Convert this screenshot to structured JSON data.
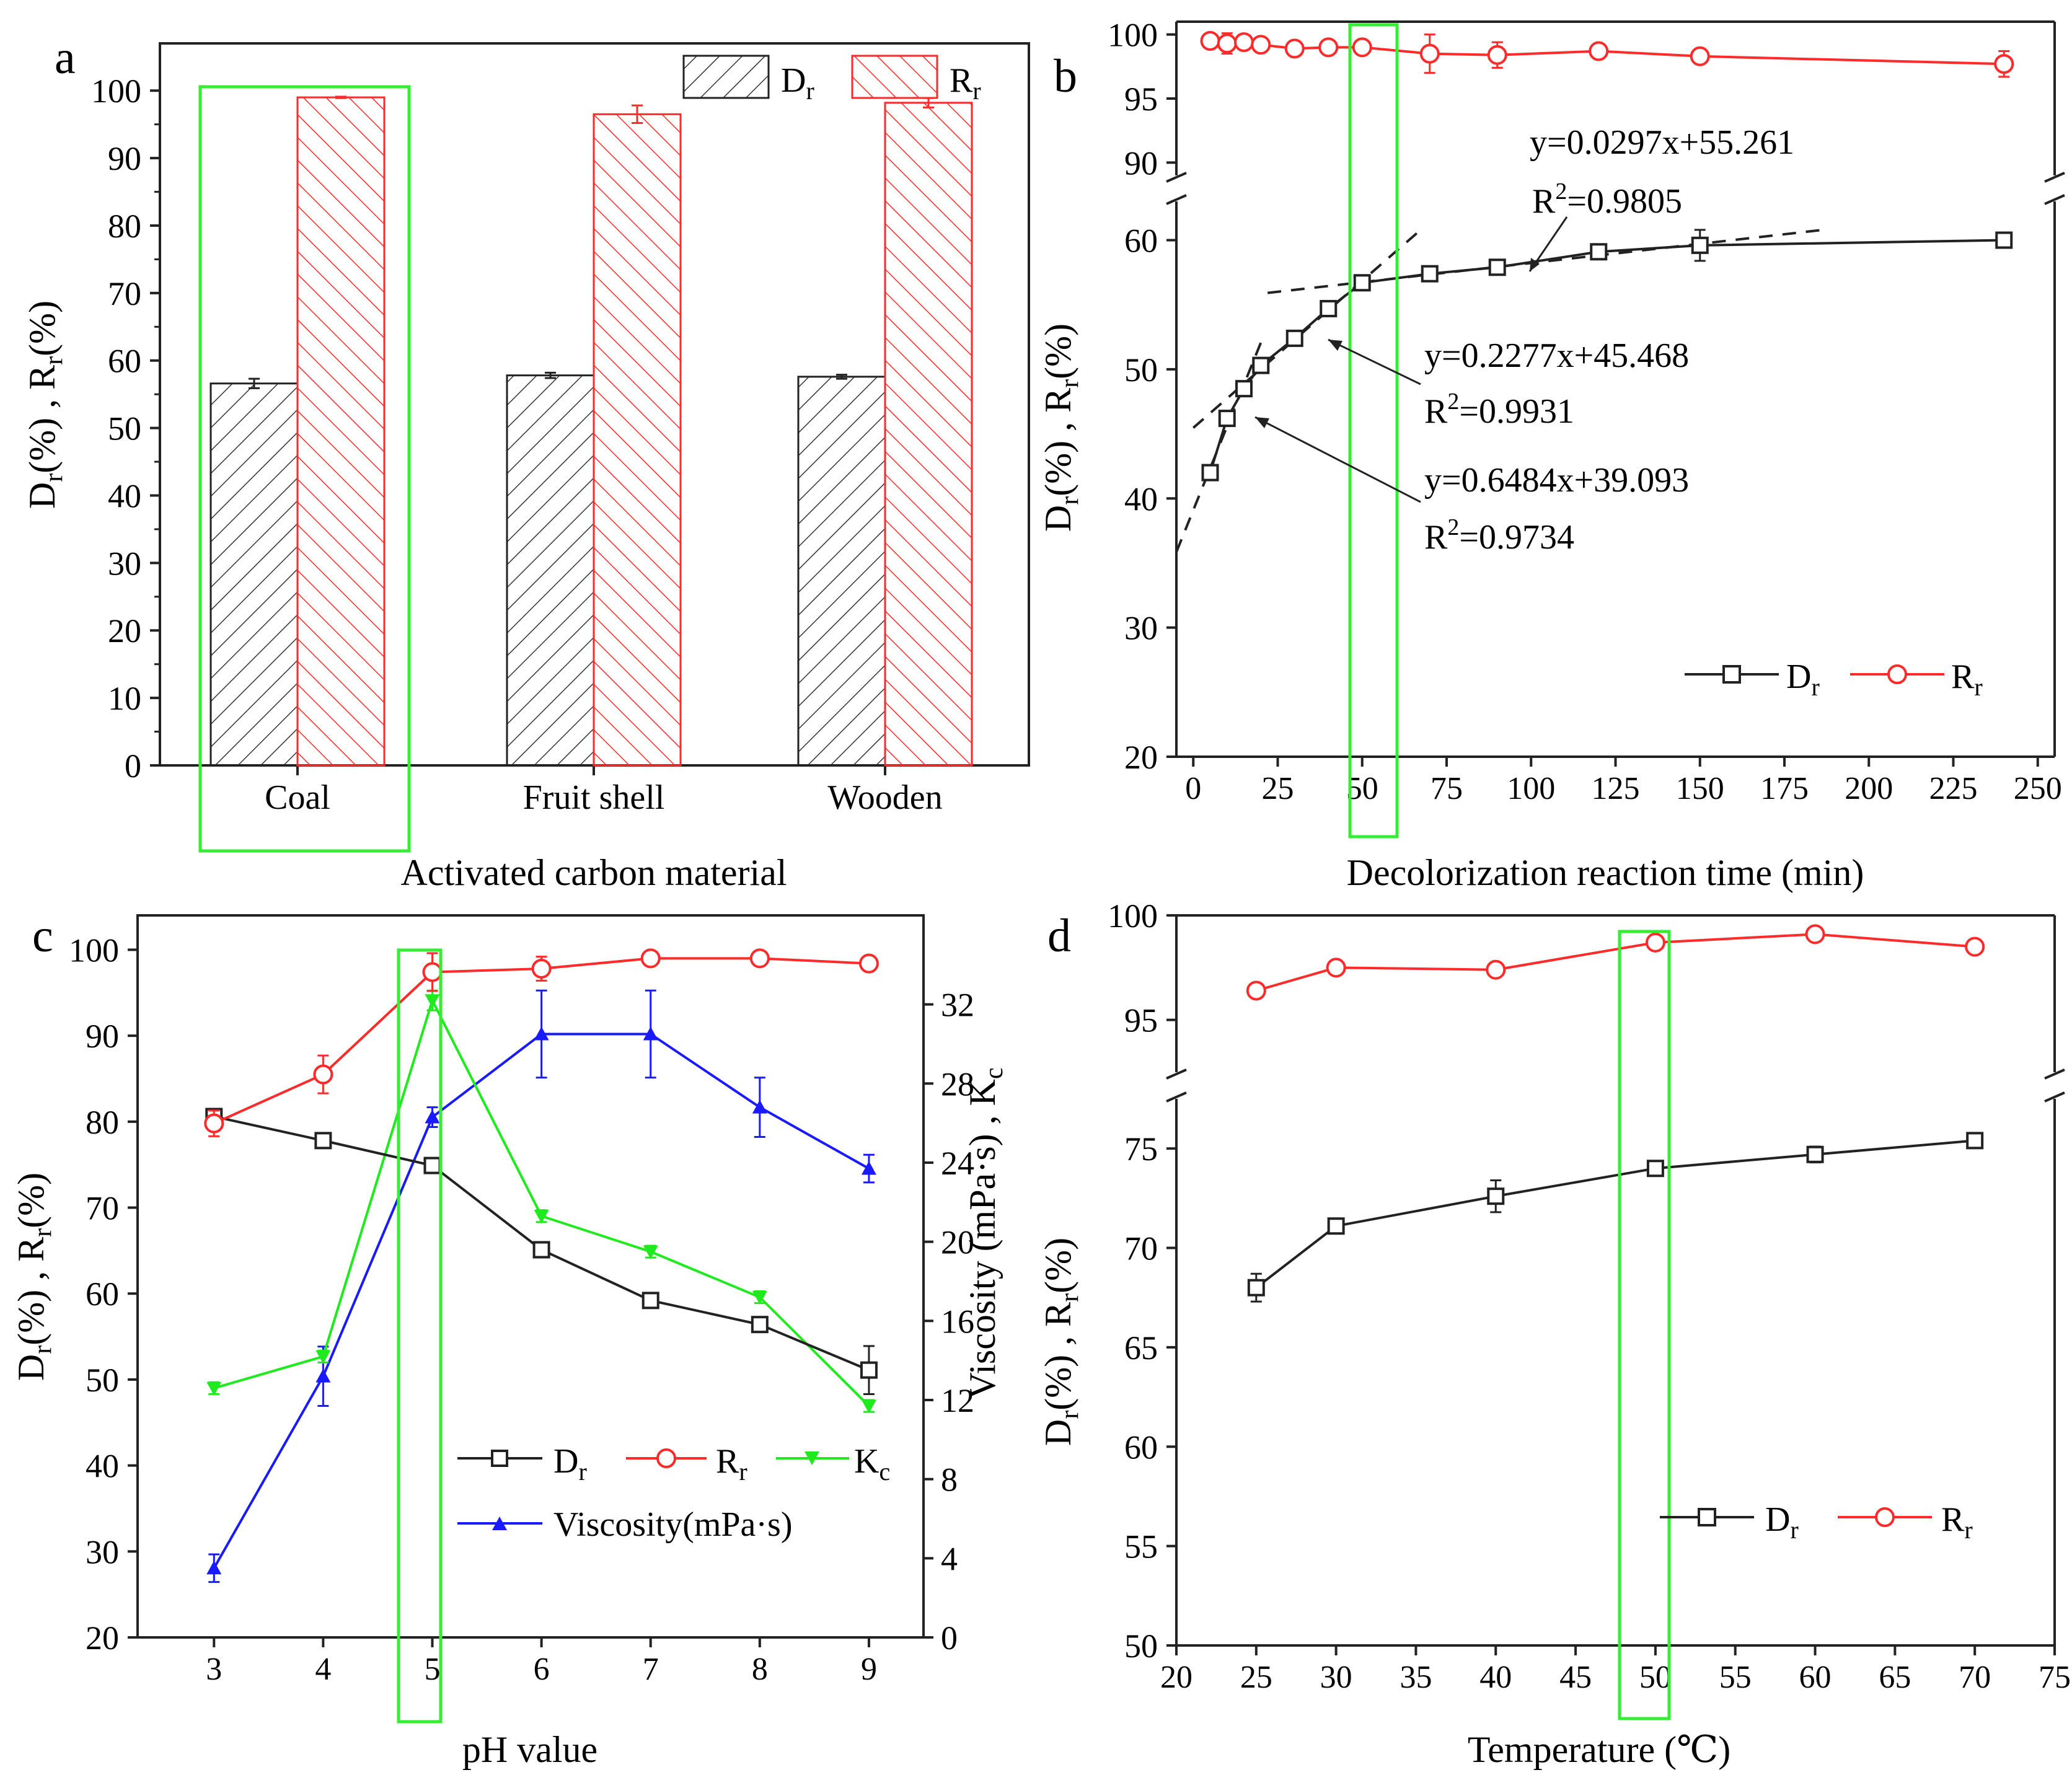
{
  "colors": {
    "black": "#222222",
    "red": "#ff2a2a",
    "green": "#1eea1e",
    "blue": "#1a1aff",
    "highlight": "#33ee33"
  },
  "chart_data": [
    {
      "panel": "a",
      "type": "bar",
      "xlabel": "Activated carbon material",
      "ylabel": {
        "base": "D",
        "sub1": "r",
        "mid": "(%) , R",
        "sub2": "r",
        "end": "(%)"
      },
      "ylim": [
        0,
        107
      ],
      "yticks": [
        "0",
        "10",
        "20",
        "30",
        "40",
        "50",
        "60",
        "70",
        "80",
        "90",
        "100"
      ],
      "categories": [
        "Coal",
        "Fruit shell",
        "Wooden"
      ],
      "series": [
        {
          "name": "D",
          "sub": "r",
          "values": [
            56.6,
            57.8,
            57.6
          ],
          "errors": [
            0.7,
            0.4,
            0.3
          ],
          "pattern": "black-hatch"
        },
        {
          "name": "R",
          "sub": "r",
          "values": [
            99.0,
            96.5,
            98.2
          ],
          "errors": [
            0.1,
            1.3,
            0.7
          ],
          "pattern": "red-hatch"
        }
      ],
      "highlight": "Coal",
      "legend": "top-right"
    },
    {
      "panel": "b",
      "type": "line",
      "xlabel": "Decolorization reaction time (min)",
      "ylabel": {
        "base": "D",
        "sub1": "r",
        "mid": "(%) , R",
        "sub2": "r",
        "end": "(%)"
      },
      "xlim": [
        -5,
        255
      ],
      "xticks": [
        "0",
        "25",
        "50",
        "75",
        "100",
        "125",
        "150",
        "175",
        "200",
        "225",
        "250"
      ],
      "ybreak": {
        "lower": [
          20,
          63
        ],
        "upper": [
          89,
          101
        ]
      },
      "yticks_lower": [
        "20",
        "30",
        "40",
        "50",
        "60"
      ],
      "yticks_upper": [
        "90",
        "95",
        "100"
      ],
      "series": [
        {
          "name": "D",
          "sub": "r",
          "x": [
            5,
            10,
            15,
            20,
            30,
            40,
            50,
            70,
            90,
            120,
            150,
            240
          ],
          "y": [
            42.0,
            46.2,
            48.5,
            50.3,
            52.4,
            54.7,
            56.7,
            57.4,
            57.9,
            59.1,
            59.6,
            60.0
          ],
          "errors": [
            0.3,
            0.3,
            0.4,
            0.4,
            0.3,
            0.4,
            0.3,
            0.3,
            0.3,
            0.4,
            1.2,
            0.3
          ]
        },
        {
          "name": "R",
          "sub": "r",
          "x": [
            5,
            10,
            15,
            20,
            30,
            40,
            50,
            70,
            90,
            120,
            150,
            240
          ],
          "y": [
            99.5,
            99.3,
            99.4,
            99.2,
            98.9,
            99.0,
            99.0,
            98.5,
            98.4,
            98.7,
            98.3,
            97.7
          ],
          "errors": [
            0.5,
            0.8,
            0.4,
            0.3,
            0.2,
            0.2,
            0.2,
            1.5,
            1.0,
            0.4,
            0.3,
            1.0
          ]
        }
      ],
      "fits": [
        {
          "equation": "y=0.6484x+39.093",
          "r2": "=0.9734",
          "range": [
            -5,
            20
          ]
        },
        {
          "equation": "y=0.2277x+45.468",
          "r2": "=0.9931",
          "range": [
            0,
            68
          ]
        },
        {
          "equation": "y=0.0297x+55.261",
          "r2": "=0.9805",
          "range": [
            22,
            188
          ]
        }
      ],
      "r2_prefix": "R",
      "r2_sup": "2",
      "highlight_x": 50,
      "legend": "bottom-right"
    },
    {
      "panel": "c",
      "type": "line",
      "xlabel": "pH value",
      "ylabel": {
        "base": "D",
        "sub1": "r",
        "mid": "(%) , R",
        "sub2": "r",
        "end": "(%)"
      },
      "ylabel_right": {
        "base": "Viscosity (mPa·s) , K",
        "sub": "c"
      },
      "xlim": [
        2.3,
        9.5
      ],
      "xticks": [
        "3",
        "4",
        "5",
        "6",
        "7",
        "8",
        "9"
      ],
      "ylim": [
        20,
        104
      ],
      "yticks": [
        "20",
        "30",
        "40",
        "50",
        "60",
        "70",
        "80",
        "90",
        "100"
      ],
      "ylim_right": [
        0,
        36.5
      ],
      "yticks_right": [
        "0",
        "4",
        "8",
        "12",
        "16",
        "20",
        "24",
        "28",
        "32"
      ],
      "series": [
        {
          "name": "D",
          "sub": "r",
          "axis": "left",
          "x": [
            3,
            4,
            5,
            6,
            7,
            8,
            9
          ],
          "y": [
            80.6,
            77.8,
            74.9,
            65.1,
            59.2,
            56.4,
            51.1
          ],
          "errors": [
            0.6,
            0.5,
            0.5,
            0.5,
            0.5,
            0.6,
            2.8
          ]
        },
        {
          "name": "R",
          "sub": "r",
          "axis": "left",
          "x": [
            3,
            4,
            5,
            6,
            7,
            8,
            9
          ],
          "y": [
            79.8,
            85.5,
            97.4,
            97.8,
            99.0,
            99.0,
            98.4
          ],
          "errors": [
            1.5,
            2.2,
            2.2,
            1.4,
            0.5,
            0.5,
            0.5
          ]
        },
        {
          "name": "K",
          "sub": "c",
          "axis": "right",
          "x": [
            3,
            4,
            5,
            6,
            7,
            8,
            9
          ],
          "y": [
            12.6,
            14.2,
            32.2,
            21.3,
            19.5,
            17.2,
            11.7
          ],
          "errors": [
            0.3,
            0.3,
            0.5,
            0.3,
            0.3,
            0.3,
            0.3
          ]
        },
        {
          "name": "Viscosity(mPa·s)",
          "sub": "",
          "axis": "right",
          "x": [
            3,
            4,
            5,
            6,
            7,
            8,
            9
          ],
          "y": [
            3.5,
            13.2,
            26.3,
            30.5,
            30.5,
            26.8,
            23.7
          ],
          "errors": [
            0.7,
            1.5,
            0.5,
            2.2,
            2.2,
            1.5,
            0.7
          ]
        }
      ],
      "highlight_x": 5,
      "legend": "bottom-center"
    },
    {
      "panel": "d",
      "type": "line",
      "xlabel": "Temperature (℃)",
      "ylabel": {
        "base": "D",
        "sub1": "r",
        "mid": "(%) , R",
        "sub2": "r",
        "end": "(%)"
      },
      "xlim": [
        20,
        75
      ],
      "xticks": [
        "20",
        "25",
        "30",
        "35",
        "40",
        "45",
        "50",
        "55",
        "60",
        "65",
        "70",
        "75"
      ],
      "ybreak": {
        "lower": [
          50,
          77.5
        ],
        "upper": [
          92.5,
          100
        ]
      },
      "yticks_lower": [
        "50",
        "55",
        "60",
        "65",
        "70",
        "75"
      ],
      "yticks_upper": [
        "95",
        "100"
      ],
      "series": [
        {
          "name": "D",
          "sub": "r",
          "x": [
            25,
            30,
            40,
            50,
            60,
            70
          ],
          "y": [
            68.0,
            71.1,
            72.6,
            74.0,
            74.7,
            75.4
          ],
          "errors": [
            0.7,
            0.3,
            0.8,
            0.3,
            0.4,
            0.3
          ]
        },
        {
          "name": "R",
          "sub": "r",
          "x": [
            25,
            30,
            40,
            50,
            60,
            70
          ],
          "y": [
            96.4,
            97.5,
            97.4,
            98.7,
            99.1,
            98.5
          ],
          "errors": [
            0.2,
            0.2,
            0.2,
            0.3,
            0.3,
            0.2
          ]
        }
      ],
      "highlight_x": 50,
      "legend": "bottom-right"
    }
  ]
}
